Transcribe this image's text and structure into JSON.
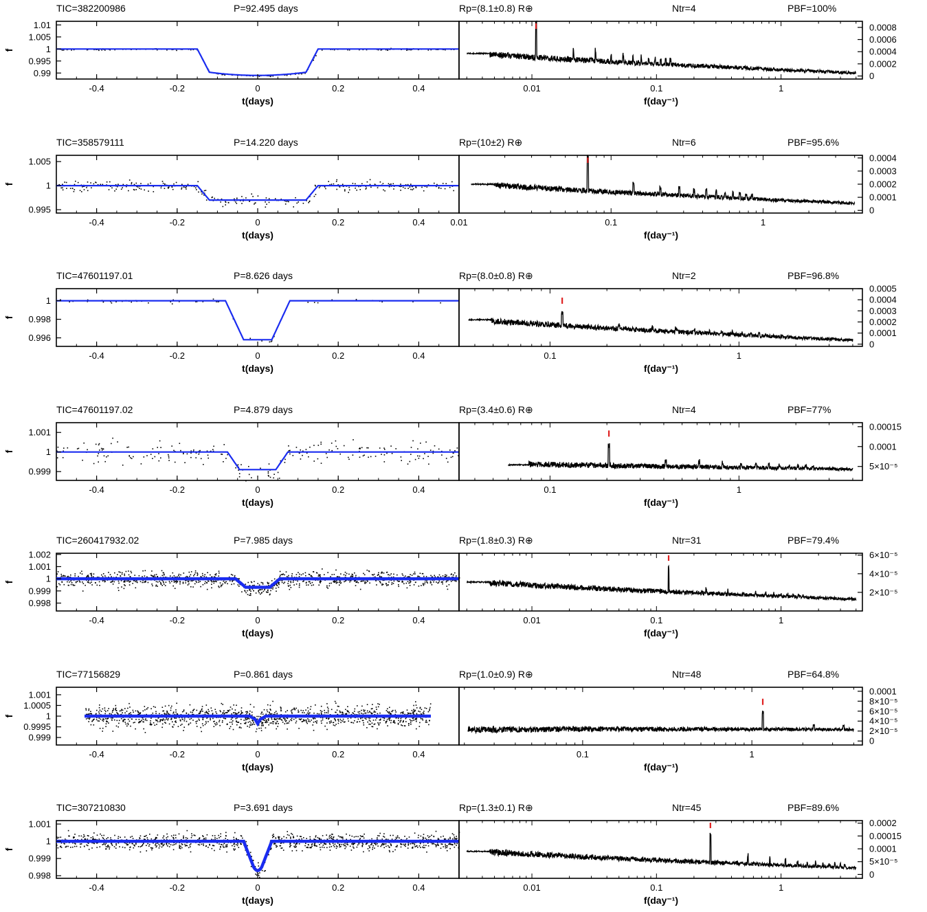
{
  "figure": {
    "colors": {
      "model": "#1a2cf0",
      "marker": "#e02020",
      "data": "#000000"
    },
    "left_xlabel": "t(days)",
    "left_ylabel": "f",
    "right_xlabel": "f(day⁻¹)"
  },
  "chart_data": [
    {
      "type": "scatter",
      "title": "TIC=382200986",
      "header": {
        "tic": "TIC=382200986",
        "period": "P=92.495 days",
        "radius": "Rp=(8.1±0.8) R⊕",
        "ntr": "Ntr=4",
        "prob": "PBF=100%"
      },
      "light_curve": {
        "xlim": [
          -0.5,
          0.5
        ],
        "ylim": [
          0.9875,
          1.0115
        ],
        "xticks": [
          "-0.4",
          "-0.2",
          "0",
          "0.2",
          "0.4"
        ],
        "yticks": [
          {
            "v": 1.01,
            "label": "1.01"
          },
          {
            "v": 1.005,
            "label": "1.005"
          },
          {
            "v": 1.0,
            "label": "1"
          },
          {
            "v": 0.995,
            "label": "0.995"
          },
          {
            "v": 0.99,
            "label": "0.99"
          }
        ],
        "model": {
          "depth": 0.011,
          "t1": 0.15,
          "t2": 0.12,
          "shape": "u"
        },
        "noise": 0.0003,
        "n_points": 170,
        "span": [
          -0.5,
          0.5
        ]
      },
      "periodogram": {
        "scale": "log",
        "xlim": [
          0.0026,
          4.5
        ],
        "xticks": [
          {
            "v": 0.01,
            "label": "0.01"
          },
          {
            "v": 0.1,
            "label": "0.1"
          },
          {
            "v": 1,
            "label": "1"
          }
        ],
        "ylim": [
          -5e-05,
          0.0009
        ],
        "yticks": [
          {
            "v": 0,
            "label": "0"
          },
          {
            "v": 0.0002,
            "label": "0.0002"
          },
          {
            "v": 0.0004,
            "label": "0.0004"
          },
          {
            "v": 0.0006,
            "label": "0.0006"
          },
          {
            "v": 0.0008,
            "label": "0.0008"
          }
        ],
        "fmin": 0.003,
        "fmax": 4.0,
        "y_start": 0.00037,
        "y_end": 4e-05,
        "peak_freq": 0.0108,
        "peak_height": 0.0006,
        "harmonic_boost": 0.0003
      }
    },
    {
      "type": "scatter",
      "title": "TIC=358579111",
      "header": {
        "tic": "TIC=358579111",
        "period": "P=14.220 days",
        "radius": "Rp=(10±2) R⊕",
        "ntr": "Ntr=6",
        "prob": "PBF=95.6%"
      },
      "light_curve": {
        "xlim": [
          -0.5,
          0.5
        ],
        "ylim": [
          0.9943,
          1.0063
        ],
        "xticks": [
          "-0.4",
          "-0.2",
          "0",
          "0.2",
          "0.4"
        ],
        "yticks": [
          {
            "v": 1.005,
            "label": "1.005"
          },
          {
            "v": 1.0,
            "label": "1"
          },
          {
            "v": 0.995,
            "label": "0.995"
          }
        ],
        "model": {
          "depth": 0.003,
          "t1": 0.15,
          "t2": 0.12,
          "shape": "flat"
        },
        "noise": 0.001,
        "n_points": 300,
        "span": [
          -0.5,
          0.5
        ]
      },
      "periodogram": {
        "scale": "log",
        "xlim": [
          0.01,
          4.5
        ],
        "xticks": [
          {
            "v": 0.01,
            "label": "0.01"
          },
          {
            "v": 0.1,
            "label": "0.1"
          },
          {
            "v": 1,
            "label": "1"
          }
        ],
        "ylim": [
          -2e-05,
          0.00042
        ],
        "yticks": [
          {
            "v": 0,
            "label": "0"
          },
          {
            "v": 0.0001,
            "label": "0.0001"
          },
          {
            "v": 0.0002,
            "label": "0.0002"
          },
          {
            "v": 0.0003,
            "label": "0.0003"
          },
          {
            "v": 0.0004,
            "label": "0.0004"
          }
        ],
        "fmin": 0.012,
        "fmax": 4.0,
        "y_start": 0.0002,
        "y_end": 5e-05,
        "peak_freq": 0.0703,
        "peak_height": 0.00027,
        "harmonic_boost": 0.00013
      }
    },
    {
      "type": "scatter",
      "title": "TIC=47601197.01",
      "header": {
        "tic": "TIC=47601197.01",
        "period": "P=8.626 days",
        "radius": "Rp=(8.0±0.8) R⊕",
        "ntr": "Ntr=2",
        "prob": "PBF=96.8%"
      },
      "light_curve": {
        "xlim": [
          -0.5,
          0.5
        ],
        "ylim": [
          0.99508,
          1.0013
        ],
        "xticks": [
          "-0.4",
          "-0.2",
          "0",
          "0.2",
          "0.4"
        ],
        "yticks": [
          {
            "v": 1.0,
            "label": "1"
          },
          {
            "v": 0.998,
            "label": "0.998"
          },
          {
            "v": 0.996,
            "label": "0.996"
          }
        ],
        "model": {
          "depth": 0.0042,
          "t1": 0.08,
          "t2": 0.035,
          "shape": "flat"
        },
        "noise": 0.0002,
        "n_points": 55,
        "span": [
          -0.5,
          0.5
        ]
      },
      "periodogram": {
        "scale": "log",
        "xlim": [
          0.033,
          4.5
        ],
        "xticks": [
          {
            "v": 0.1,
            "label": "0.1"
          },
          {
            "v": 1,
            "label": "1"
          }
        ],
        "ylim": [
          -2e-05,
          0.0005
        ],
        "yticks": [
          {
            "v": 0,
            "label": "0"
          },
          {
            "v": 0.0001,
            "label": "0.0001"
          },
          {
            "v": 0.0002,
            "label": "0.0002"
          },
          {
            "v": 0.0003,
            "label": "0.0003"
          },
          {
            "v": 0.0004,
            "label": "0.0004"
          },
          {
            "v": 0.0005,
            "label": "0.0005"
          }
        ],
        "fmin": 0.037,
        "fmax": 4.0,
        "y_start": 0.00022,
        "y_end": 3e-05,
        "peak_freq": 0.116,
        "peak_height": 0.00012,
        "harmonic_boost": 6e-05
      }
    },
    {
      "type": "scatter",
      "title": "TIC=47601197.02",
      "header": {
        "tic": "TIC=47601197.02",
        "period": "P=4.879 days",
        "radius": "Rp=(3.4±0.6) R⊕",
        "ntr": "Ntr=4",
        "prob": "PBF=77%"
      },
      "light_curve": {
        "xlim": [
          -0.5,
          0.5
        ],
        "ylim": [
          0.99855,
          1.0015
        ],
        "xticks": [
          "-0.4",
          "-0.2",
          "0",
          "0.2",
          "0.4"
        ],
        "yticks": [
          {
            "v": 1.001,
            "label": "1.001"
          },
          {
            "v": 1.0,
            "label": "1"
          },
          {
            "v": 0.999,
            "label": "0.999"
          }
        ],
        "model": {
          "depth": 0.0009,
          "t1": 0.075,
          "t2": 0.045,
          "shape": "flat"
        },
        "noise": 0.00055,
        "n_points": 230,
        "span": [
          -0.5,
          0.5
        ]
      },
      "periodogram": {
        "scale": "log",
        "xlim": [
          0.033,
          4.5
        ],
        "xticks": [
          {
            "v": 0.1,
            "label": "0.1"
          },
          {
            "v": 1,
            "label": "1"
          }
        ],
        "ylim": [
          1.5e-05,
          0.00016
        ],
        "yticks": [
          {
            "v": 5e-05,
            "label": "5×10⁻⁵"
          },
          {
            "v": 0.0001,
            "label": "0.0001"
          },
          {
            "v": 0.00015,
            "label": "0.00015"
          }
        ],
        "fmin": 0.06,
        "fmax": 4.0,
        "y_start": 5.4e-05,
        "y_end": 4.2e-05,
        "peak_freq": 0.205,
        "peak_height": 5.2e-05,
        "harmonic_boost": 2.5e-05
      }
    },
    {
      "type": "scatter",
      "title": "TIC=260417932.02",
      "header": {
        "tic": "TIC=260417932.02",
        "period": "P=7.985 days",
        "radius": "Rp=(1.8±0.3) R⊕",
        "ntr": "Ntr=31",
        "prob": "PBF=79.4%"
      },
      "light_curve": {
        "xlim": [
          -0.5,
          0.5
        ],
        "ylim": [
          0.99735,
          1.0021
        ],
        "xticks": [
          "-0.4",
          "-0.2",
          "0",
          "0.2",
          "0.4"
        ],
        "yticks": [
          {
            "v": 1.002,
            "label": "1.002"
          },
          {
            "v": 1.001,
            "label": "1.001"
          },
          {
            "v": 1.0,
            "label": "1"
          },
          {
            "v": 0.999,
            "label": "0.999"
          },
          {
            "v": 0.998,
            "label": "0.998"
          }
        ],
        "model": {
          "depth": 0.0007,
          "t1": 0.055,
          "t2": 0.03,
          "shape": "flat"
        },
        "noise": 0.00055,
        "n_points": 1000,
        "span": [
          -0.5,
          0.5
        ]
      },
      "periodogram": {
        "scale": "log",
        "xlim": [
          0.0026,
          4.5
        ],
        "xticks": [
          {
            "v": 0.01,
            "label": "0.01"
          },
          {
            "v": 0.1,
            "label": "0.1"
          },
          {
            "v": 1,
            "label": "1"
          }
        ],
        "ylim": [
          0.0,
          6.2e-05
        ],
        "yticks": [
          {
            "v": 2e-05,
            "label": "2×10⁻⁵"
          },
          {
            "v": 4e-05,
            "label": "4×10⁻⁵"
          },
          {
            "v": 6e-05,
            "label": "6×10⁻⁵"
          }
        ],
        "fmin": 0.003,
        "fmax": 4.0,
        "y_start": 3.1e-05,
        "y_end": 1.2e-05,
        "peak_freq": 0.1252,
        "peak_height": 2.6e-05,
        "harmonic_boost": 8e-06
      }
    },
    {
      "type": "scatter",
      "title": "TIC=77156829",
      "header": {
        "tic": "TIC=77156829",
        "period": "P=0.861 days",
        "radius": "Rp=(1.0±0.9) R⊕",
        "ntr": "Ntr=48",
        "prob": "PBF=64.8%"
      },
      "light_curve": {
        "xlim": [
          -0.5,
          0.5
        ],
        "ylim": [
          0.99865,
          1.00135
        ],
        "xticks": [
          "-0.4",
          "-0.2",
          "0",
          "0.2",
          "0.4"
        ],
        "yticks": [
          {
            "v": 1.001,
            "label": "1.001"
          },
          {
            "v": 1.0005,
            "label": "1.0005"
          },
          {
            "v": 1.0,
            "label": "1"
          },
          {
            "v": 0.9995,
            "label": "0.9995"
          },
          {
            "v": 0.999,
            "label": "0.999"
          }
        ],
        "model": {
          "depth": 0.00035,
          "t1": 0.02,
          "t2": 0.006,
          "shape": "v"
        },
        "noise": 0.00045,
        "n_points": 1200,
        "span": [
          -0.43,
          0.43
        ]
      },
      "periodogram": {
        "scale": "log",
        "xlim": [
          0.0186,
          4.5
        ],
        "xticks": [
          {
            "v": 0.1,
            "label": "0.1"
          },
          {
            "v": 1,
            "label": "1"
          }
        ],
        "ylim": [
          -8e-06,
          0.000108
        ],
        "yticks": [
          {
            "v": 0,
            "label": "0"
          },
          {
            "v": 2e-05,
            "label": "2×10⁻⁵"
          },
          {
            "v": 4e-05,
            "label": "4×10⁻⁵"
          },
          {
            "v": 6e-05,
            "label": "6×10⁻⁵"
          },
          {
            "v": 8e-05,
            "label": "8×10⁻⁵"
          },
          {
            "v": 0.0001,
            "label": "0.0001"
          }
        ],
        "fmin": 0.021,
        "fmax": 4.0,
        "y_start": 2e-05,
        "y_end": 2.2e-05,
        "peak_freq": 1.16,
        "peak_height": 3.4e-05,
        "harmonic_boost": 1.4e-05,
        "rising": true
      }
    },
    {
      "type": "scatter",
      "title": "TIC=307210830",
      "header": {
        "tic": "TIC=307210830",
        "period": "P=3.691 days",
        "radius": "Rp=(1.3±0.1) R⊕",
        "ntr": "Ntr=45",
        "prob": "PBF=89.6%"
      },
      "light_curve": {
        "xlim": [
          -0.5,
          0.5
        ],
        "ylim": [
          0.99785,
          1.0012
        ],
        "xticks": [
          "-0.4",
          "-0.2",
          "0",
          "0.2",
          "0.4"
        ],
        "yticks": [
          {
            "v": 1.001,
            "label": "1.001"
          },
          {
            "v": 1.0,
            "label": "1"
          },
          {
            "v": 0.999,
            "label": "0.999"
          },
          {
            "v": 0.998,
            "label": "0.998"
          }
        ],
        "model": {
          "depth": 0.0017,
          "t1": 0.035,
          "t2": 0.01,
          "shape": "u"
        },
        "noise": 0.0004,
        "n_points": 1100,
        "span": [
          -0.5,
          0.5
        ]
      },
      "periodogram": {
        "scale": "log",
        "xlim": [
          0.0026,
          4.5
        ],
        "xticks": [
          {
            "v": 0.01,
            "label": "0.01"
          },
          {
            "v": 0.1,
            "label": "0.1"
          },
          {
            "v": 1,
            "label": "1"
          }
        ],
        "ylim": [
          -1.5e-05,
          0.00021
        ],
        "yticks": [
          {
            "v": 0,
            "label": "0"
          },
          {
            "v": 5e-05,
            "label": "5×10⁻⁵"
          },
          {
            "v": 0.0001,
            "label": "0.0001"
          },
          {
            "v": 0.00015,
            "label": "0.00015"
          },
          {
            "v": 0.0002,
            "label": "0.0002"
          }
        ],
        "fmin": 0.003,
        "fmax": 4.0,
        "y_start": 9e-05,
        "y_end": 2.3e-05,
        "peak_freq": 0.271,
        "peak_height": 0.00011,
        "harmonic_boost": 5e-05
      }
    }
  ]
}
